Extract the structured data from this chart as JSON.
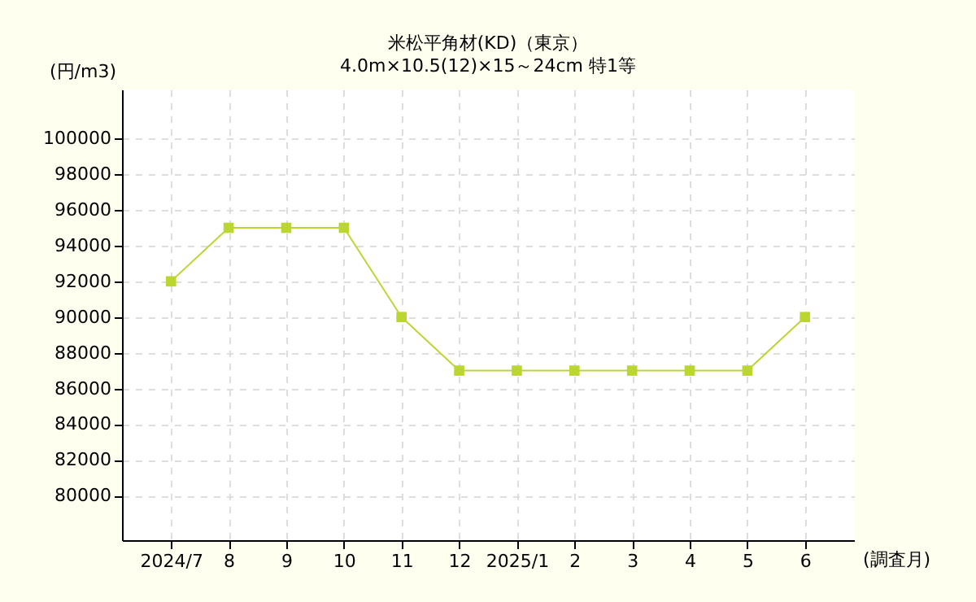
{
  "chart_data": {
    "type": "line",
    "title": "米松平角材(KD)（東京）",
    "subtitle": "4.0m×10.5(12)×15～24cm 特1等",
    "ylabel": "(円/m3)",
    "xlabel": "(調査月)",
    "categories": [
      "2024/7",
      "8",
      "9",
      "10",
      "11",
      "12",
      "2025/1",
      "2",
      "3",
      "4",
      "5",
      "6"
    ],
    "series": [
      {
        "color": "#bcd631",
        "values": [
          92000,
          95000,
          95000,
          95000,
          90000,
          87000,
          87000,
          87000,
          87000,
          87000,
          87000,
          90000
        ]
      }
    ],
    "ylim": [
      77500,
      102750
    ],
    "yticks": [
      80000,
      82000,
      84000,
      86000,
      88000,
      90000,
      92000,
      94000,
      96000,
      98000,
      100000
    ],
    "grid": true,
    "marker": "square",
    "line_style": "solid"
  }
}
